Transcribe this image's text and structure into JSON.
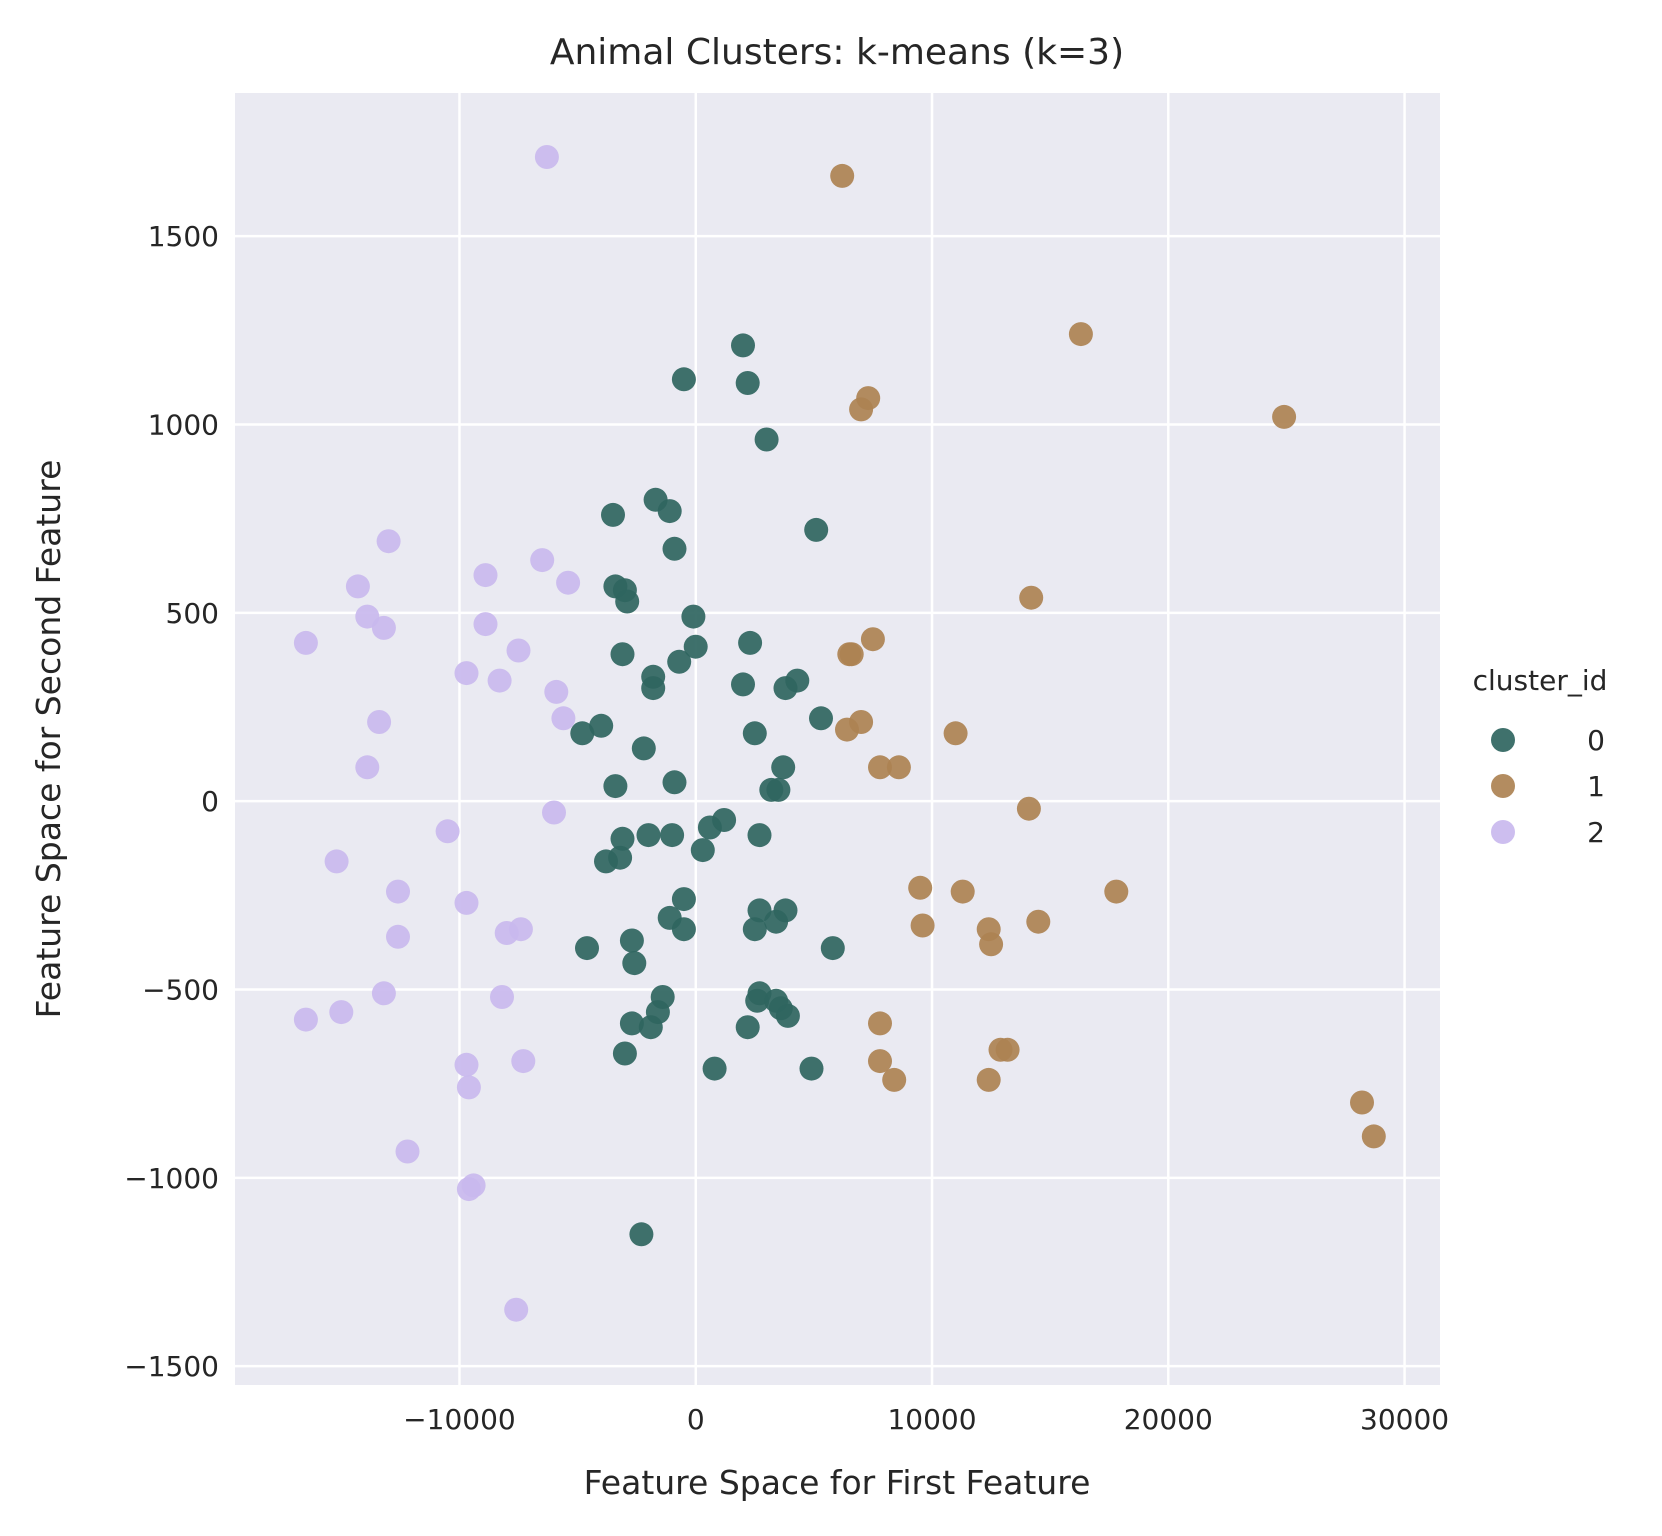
{
  "chart_data": {
    "type": "scatter",
    "title": "Animal Clusters: k-means (k=3)",
    "xlabel": "Feature Space for First Feature",
    "ylabel": "Feature Space for Second Feature",
    "xlim": [
      -19500,
      31500
    ],
    "ylim": [
      -1550,
      1880
    ],
    "xticks": [
      -10000,
      0,
      10000,
      20000,
      30000
    ],
    "xtick_labels": [
      "−10000",
      "0",
      "10000",
      "20000",
      "30000"
    ],
    "yticks": [
      -1500,
      -1000,
      -500,
      0,
      500,
      1000,
      1500
    ],
    "ytick_labels": [
      "−1500",
      "−1000",
      "−500",
      "0",
      "500",
      "1000",
      "1500"
    ],
    "grid": true,
    "legend": {
      "title": "cluster_id",
      "placement": "right"
    },
    "series": [
      {
        "name": "0",
        "color": "#2f6560",
        "points": [
          [
            2000,
            1210
          ],
          [
            2200,
            1110
          ],
          [
            -500,
            1120
          ],
          [
            3000,
            960
          ],
          [
            -1700,
            800
          ],
          [
            -1100,
            770
          ],
          [
            -3500,
            760
          ],
          [
            -900,
            670
          ],
          [
            5100,
            720
          ],
          [
            -3400,
            570
          ],
          [
            -3000,
            560
          ],
          [
            -2900,
            530
          ],
          [
            -100,
            490
          ],
          [
            2300,
            420
          ],
          [
            -3100,
            390
          ],
          [
            0,
            410
          ],
          [
            -700,
            370
          ],
          [
            -1800,
            330
          ],
          [
            -1800,
            300
          ],
          [
            2000,
            310
          ],
          [
            4300,
            320
          ],
          [
            3800,
            300
          ],
          [
            -4000,
            200
          ],
          [
            -4800,
            180
          ],
          [
            5300,
            220
          ],
          [
            2500,
            180
          ],
          [
            -2200,
            140
          ],
          [
            3700,
            90
          ],
          [
            -3400,
            40
          ],
          [
            -900,
            50
          ],
          [
            3500,
            30
          ],
          [
            3200,
            30
          ],
          [
            1200,
            -50
          ],
          [
            600,
            -70
          ],
          [
            -2000,
            -90
          ],
          [
            -1000,
            -90
          ],
          [
            2700,
            -90
          ],
          [
            -3100,
            -100
          ],
          [
            300,
            -130
          ],
          [
            -3200,
            -150
          ],
          [
            -3800,
            -160
          ],
          [
            -500,
            -260
          ],
          [
            2700,
            -290
          ],
          [
            3800,
            -290
          ],
          [
            -1100,
            -310
          ],
          [
            3400,
            -320
          ],
          [
            -500,
            -340
          ],
          [
            2500,
            -340
          ],
          [
            -2700,
            -370
          ],
          [
            -4600,
            -390
          ],
          [
            5800,
            -390
          ],
          [
            -2600,
            -430
          ],
          [
            -1400,
            -520
          ],
          [
            2700,
            -510
          ],
          [
            2600,
            -530
          ],
          [
            3400,
            -530
          ],
          [
            3600,
            -550
          ],
          [
            -1600,
            -560
          ],
          [
            3900,
            -570
          ],
          [
            -2700,
            -590
          ],
          [
            -1900,
            -600
          ],
          [
            2200,
            -600
          ],
          [
            -3000,
            -670
          ],
          [
            800,
            -710
          ],
          [
            4900,
            -710
          ],
          [
            -2300,
            -1150
          ]
        ]
      },
      {
        "name": "1",
        "color": "#ad8253",
        "points": [
          [
            6200,
            1660
          ],
          [
            16300,
            1240
          ],
          [
            7300,
            1070
          ],
          [
            7000,
            1040
          ],
          [
            24900,
            1020
          ],
          [
            14200,
            540
          ],
          [
            7500,
            430
          ],
          [
            6500,
            390
          ],
          [
            6600,
            390
          ],
          [
            11000,
            180
          ],
          [
            6400,
            190
          ],
          [
            7000,
            210
          ],
          [
            7800,
            90
          ],
          [
            8600,
            90
          ],
          [
            14100,
            -20
          ],
          [
            9500,
            -230
          ],
          [
            11300,
            -240
          ],
          [
            17800,
            -240
          ],
          [
            9600,
            -330
          ],
          [
            14500,
            -320
          ],
          [
            12400,
            -340
          ],
          [
            12500,
            -380
          ],
          [
            7800,
            -590
          ],
          [
            13200,
            -660
          ],
          [
            12900,
            -660
          ],
          [
            7800,
            -690
          ],
          [
            8400,
            -740
          ],
          [
            12400,
            -740
          ],
          [
            28200,
            -800
          ],
          [
            28700,
            -890
          ]
        ]
      },
      {
        "name": "2",
        "color": "#c9b8ee",
        "points": [
          [
            -6300,
            1710
          ],
          [
            -13000,
            690
          ],
          [
            -6500,
            640
          ],
          [
            -8900,
            600
          ],
          [
            -14300,
            570
          ],
          [
            -5400,
            580
          ],
          [
            -13900,
            490
          ],
          [
            -8900,
            470
          ],
          [
            -13200,
            460
          ],
          [
            -16500,
            420
          ],
          [
            -7500,
            400
          ],
          [
            -9700,
            340
          ],
          [
            -8300,
            320
          ],
          [
            -5900,
            290
          ],
          [
            -13400,
            210
          ],
          [
            -5600,
            220
          ],
          [
            -13900,
            90
          ],
          [
            -6000,
            -30
          ],
          [
            -10500,
            -80
          ],
          [
            -15200,
            -160
          ],
          [
            -12600,
            -240
          ],
          [
            -9700,
            -270
          ],
          [
            -7400,
            -340
          ],
          [
            -8000,
            -350
          ],
          [
            -12600,
            -360
          ],
          [
            -13200,
            -510
          ],
          [
            -8200,
            -520
          ],
          [
            -16500,
            -580
          ],
          [
            -15000,
            -560
          ],
          [
            -9700,
            -700
          ],
          [
            -7300,
            -690
          ],
          [
            -9600,
            -760
          ],
          [
            -12200,
            -930
          ],
          [
            -9600,
            -1030
          ],
          [
            -9400,
            -1020
          ],
          [
            -7600,
            -1350
          ]
        ]
      }
    ]
  }
}
